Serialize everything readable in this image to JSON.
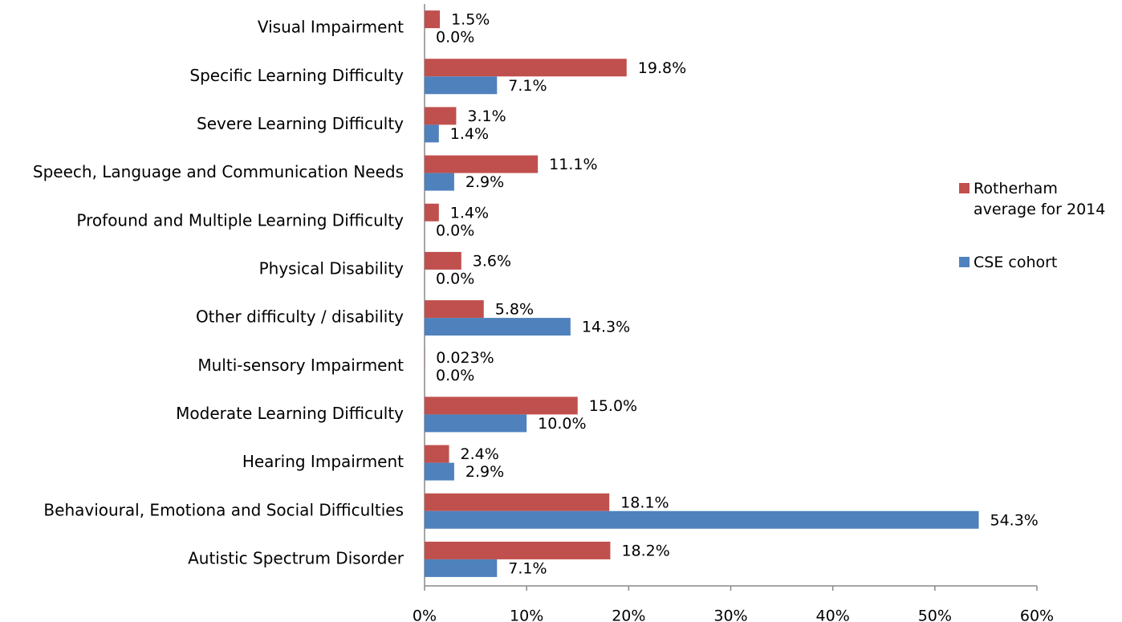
{
  "chart_data": {
    "type": "bar",
    "orientation": "horizontal",
    "categories": [
      "Visual Impairment",
      "Specific Learning Difficulty",
      "Severe Learning Difficulty",
      "Speech, Language and Communication Needs",
      "Profound and Multiple Learning Difficulty",
      "Physical Disability",
      "Other difficulty / disability",
      "Multi-sensory Impairment",
      "Moderate Learning Difficulty",
      "Hearing Impairment",
      "Behavioural, Emotiona  and Social Difficulties",
      "Autistic Spectrum Disorder"
    ],
    "series": [
      {
        "name": "Rotherham average for 2014",
        "color": "#c0504d",
        "values": [
          1.5,
          19.8,
          3.1,
          11.1,
          1.4,
          3.6,
          5.8,
          0.023,
          15.0,
          2.4,
          18.1,
          18.2
        ],
        "value_labels": [
          "1.5%",
          "19.8%",
          "3.1%",
          "11.1%",
          "1.4%",
          "3.6%",
          "5.8%",
          "0.023%",
          "15.0%",
          "2.4%",
          "18.1%",
          "18.2%"
        ]
      },
      {
        "name": "CSE cohort",
        "color": "#4f81bd",
        "values": [
          0.0,
          7.1,
          1.4,
          2.9,
          0.0,
          0.0,
          14.3,
          0.0,
          10.0,
          2.9,
          54.3,
          7.1
        ],
        "value_labels": [
          "0.0%",
          "7.1%",
          "1.4%",
          "2.9%",
          "0.0%",
          "0.0%",
          "14.3%",
          "0.0%",
          "10.0%",
          "2.9%",
          "54.3%",
          "7.1%"
        ]
      }
    ],
    "xlim": [
      0,
      60
    ],
    "xticks": [
      {
        "value": 0,
        "label": "0%"
      },
      {
        "value": 10,
        "label": "10%"
      },
      {
        "value": 20,
        "label": "20%"
      },
      {
        "value": 30,
        "label": "30%"
      },
      {
        "value": 40,
        "label": "40%"
      },
      {
        "value": 50,
        "label": "50%"
      },
      {
        "value": 60,
        "label": "60%"
      }
    ],
    "legend": "right",
    "grid": false
  }
}
